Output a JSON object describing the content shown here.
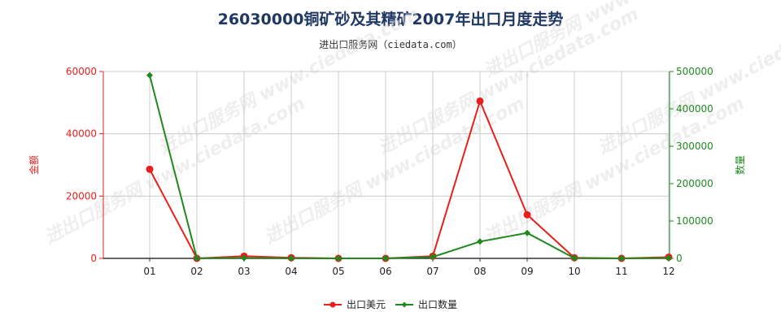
{
  "title": "26030000铜矿砂及其精矿2007年出口月度走势",
  "subtitle": "进出口服务网（ciedata.com）",
  "watermark": "进出口服务网 www.ciedata.com",
  "colors": {
    "amount": "#e8201c",
    "quantity": "#1e8a1e",
    "grid": "#cccccc",
    "axis": "#333333",
    "title": "#1f3864"
  },
  "chart_data": {
    "type": "line",
    "categories": [
      "01",
      "02",
      "03",
      "04",
      "05",
      "06",
      "07",
      "08",
      "09",
      "10",
      "11",
      "12"
    ],
    "y_left": {
      "label": "金额",
      "range": [
        0,
        60000
      ],
      "ticks": [
        0,
        20000,
        40000,
        60000
      ]
    },
    "y_right": {
      "label": "数量",
      "range": [
        0,
        500000
      ],
      "ticks": [
        0,
        100000,
        200000,
        300000,
        400000,
        500000
      ]
    },
    "grid": true,
    "legend_position": "bottom",
    "series": [
      {
        "name": "出口美元",
        "axis": "left",
        "color": "#e8201c",
        "values": [
          28600,
          0,
          700,
          200,
          0,
          0,
          700,
          50500,
          14000,
          200,
          0,
          400
        ]
      },
      {
        "name": "出口数量",
        "axis": "right",
        "color": "#1e8a1e",
        "values": [
          490000,
          0,
          800,
          200,
          0,
          0,
          4000,
          45000,
          68000,
          500,
          0,
          800
        ]
      }
    ]
  }
}
